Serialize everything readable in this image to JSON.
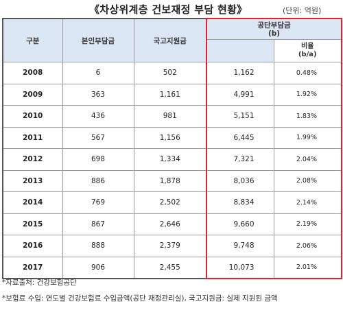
{
  "title": "《차상위계층 건보재정 부담 현황》",
  "unit": "(단위: 억원)",
  "headers": {
    "category": "구분",
    "self_burden": "본인부담금",
    "national_support": "국고지원금",
    "corp_burden": "공단부담금",
    "corp_burden_mark": "(b)",
    "ratio": "비율",
    "ratio_mark": "(b/a)"
  },
  "rows": [
    {
      "year": "2008",
      "self": "6",
      "national": "502",
      "corp": "1,162",
      "ratio": "0.48%"
    },
    {
      "year": "2009",
      "self": "363",
      "national": "1,161",
      "corp": "4,991",
      "ratio": "1.92%"
    },
    {
      "year": "2010",
      "self": "436",
      "national": "981",
      "corp": "5,151",
      "ratio": "1.83%"
    },
    {
      "year": "2011",
      "self": "567",
      "national": "1,156",
      "corp": "6,445",
      "ratio": "1.99%"
    },
    {
      "year": "2012",
      "self": "698",
      "national": "1,334",
      "corp": "7,321",
      "ratio": "2.04%"
    },
    {
      "year": "2013",
      "self": "886",
      "national": "1,878",
      "corp": "8,036",
      "ratio": "2.08%"
    },
    {
      "year": "2014",
      "self": "769",
      "national": "2,502",
      "corp": "8,834",
      "ratio": "2.14%"
    },
    {
      "year": "2015",
      "self": "867",
      "national": "2,646",
      "corp": "9,660",
      "ratio": "2.19%"
    },
    {
      "year": "2016",
      "self": "888",
      "national": "2,379",
      "corp": "9,748",
      "ratio": "2.06%"
    },
    {
      "year": "2017",
      "self": "906",
      "national": "2,455",
      "corp": "10,073",
      "ratio": "2.01%"
    }
  ],
  "notes": {
    "source": "*자료출처: 건강보험공단",
    "definition": "*보험료 수입: 연도별 건강보험료 수입금액(공단 재정관리실), 국고지원금: 실제 지원된 금액"
  },
  "colors": {
    "header_bg": "#dbe7f5",
    "highlight_border": "#e5202a"
  }
}
